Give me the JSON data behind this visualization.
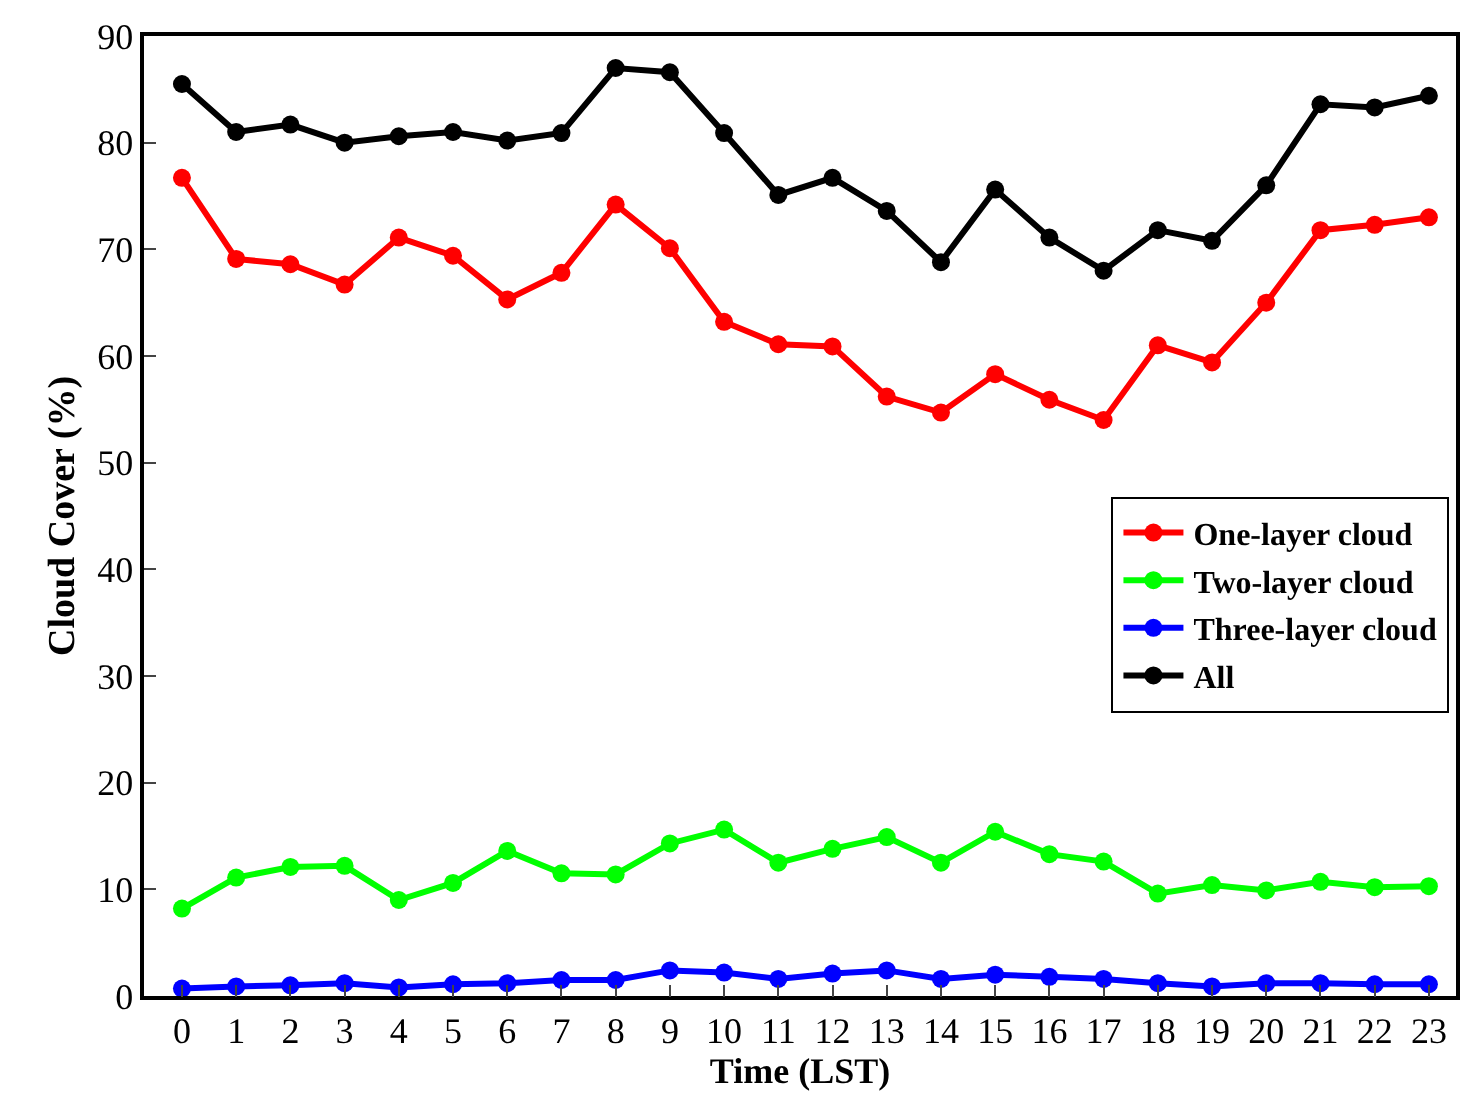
{
  "chart_data": {
    "type": "line",
    "xlabel": "Time (LST)",
    "ylabel": "Cloud Cover (%)",
    "x": [
      0,
      1,
      2,
      3,
      4,
      5,
      6,
      7,
      8,
      9,
      10,
      11,
      12,
      13,
      14,
      15,
      16,
      17,
      18,
      19,
      20,
      21,
      22,
      23
    ],
    "xlim": [
      -0.7,
      23.5
    ],
    "xticks": [
      0,
      1,
      2,
      3,
      4,
      5,
      6,
      7,
      8,
      9,
      10,
      11,
      12,
      13,
      14,
      15,
      16,
      17,
      18,
      19,
      20,
      21,
      22,
      23
    ],
    "ylim": [
      0,
      90
    ],
    "yticks": [
      0,
      10,
      20,
      30,
      40,
      50,
      60,
      70,
      80,
      90
    ],
    "series": [
      {
        "name": "One-layer cloud",
        "color": "#ff0000",
        "values": [
          76.7,
          69.1,
          68.6,
          66.7,
          71.1,
          69.4,
          65.3,
          67.8,
          74.2,
          70.1,
          63.2,
          61.1,
          60.9,
          56.2,
          54.7,
          58.3,
          55.9,
          54.0,
          61.0,
          59.4,
          65.0,
          71.8,
          72.3,
          73.0
        ]
      },
      {
        "name": "Two-layer cloud",
        "color": "#00ff00",
        "values": [
          8.2,
          11.1,
          12.1,
          12.2,
          9.0,
          10.6,
          13.6,
          11.5,
          11.4,
          14.3,
          15.6,
          12.5,
          13.8,
          14.9,
          12.5,
          15.4,
          13.3,
          12.6,
          9.6,
          10.4,
          9.9,
          10.7,
          10.2,
          10.3
        ]
      },
      {
        "name": "Three-layer cloud",
        "color": "#0000ff",
        "values": [
          0.7,
          0.9,
          1.0,
          1.2,
          0.8,
          1.1,
          1.2,
          1.5,
          1.5,
          2.4,
          2.2,
          1.6,
          2.1,
          2.4,
          1.6,
          2.0,
          1.8,
          1.6,
          1.2,
          0.9,
          1.2,
          1.2,
          1.1,
          1.1
        ]
      },
      {
        "name": "All",
        "color": "#000000",
        "values": [
          85.5,
          81.0,
          81.7,
          80.0,
          80.6,
          81.0,
          80.2,
          80.9,
          87.0,
          86.6,
          80.9,
          75.1,
          76.7,
          73.6,
          68.8,
          75.6,
          71.1,
          68.0,
          71.8,
          70.8,
          76.0,
          83.6,
          83.3,
          84.4
        ]
      }
    ],
    "legend": "right",
    "marker": "circle",
    "line_style": "solid"
  }
}
